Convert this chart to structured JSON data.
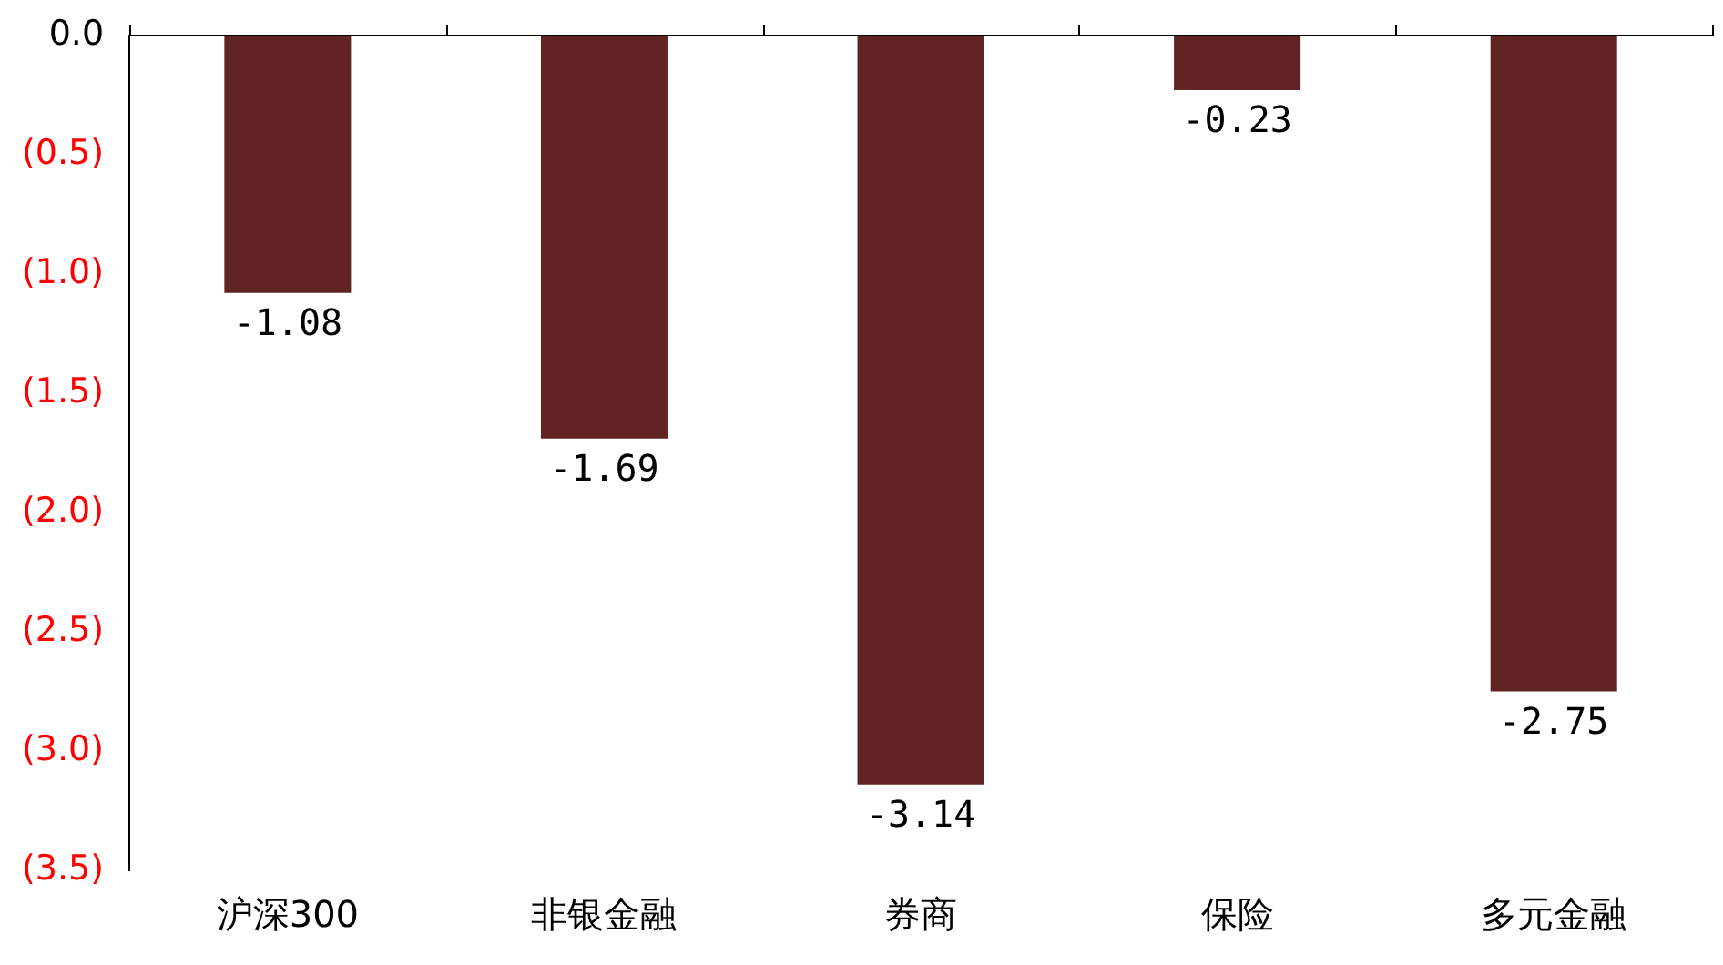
{
  "chart_data": {
    "type": "bar",
    "categories": [
      "沪深300",
      "非银金融",
      "券商",
      "保险",
      "多元金融"
    ],
    "values": [
      -1.08,
      -1.69,
      -3.14,
      -0.23,
      -2.75
    ],
    "color": "#622323",
    "ylim": [
      -3.5,
      0
    ],
    "yticks": [
      {
        "value": 0,
        "label": "0.0"
      },
      {
        "value": -0.5,
        "label": "(0.5)"
      },
      {
        "value": -1,
        "label": "(1.0)"
      },
      {
        "value": -1.5,
        "label": "(1.5)"
      },
      {
        "value": -2,
        "label": "(2.0)"
      },
      {
        "value": -2.5,
        "label": "(2.5)"
      },
      {
        "value": -3,
        "label": "(3.0)"
      },
      {
        "value": -3.5,
        "label": "(3.5)"
      }
    ],
    "data_labels": true,
    "grid": false,
    "legend": false
  }
}
